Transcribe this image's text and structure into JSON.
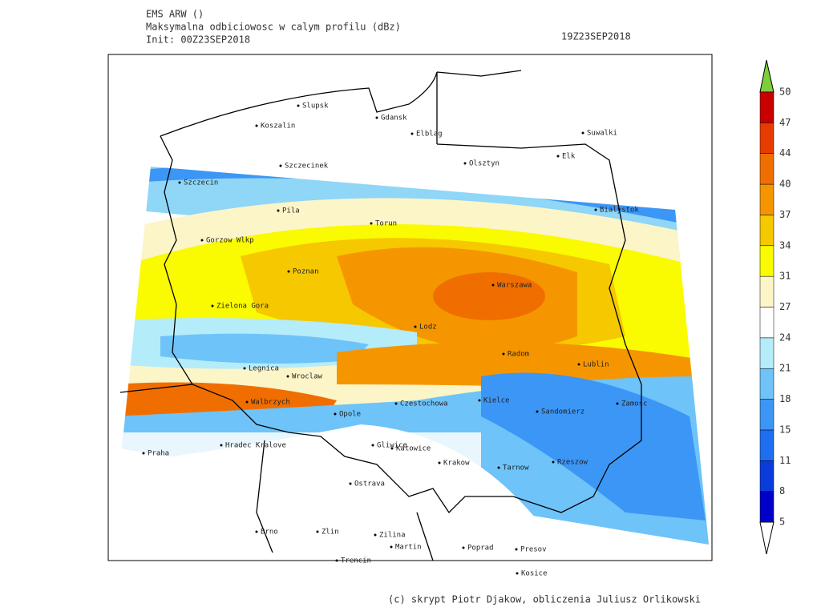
{
  "header": {
    "model": "EMS ARW ()",
    "field": "Maksymalna odbiciowosc w calym profilu (dBz)",
    "init": "Init: 00Z23SEP2018",
    "valid": "19Z23SEP2018"
  },
  "cities": [
    "Slupsk",
    "Gdansk",
    "Koszalin",
    "Elblag",
    "Suwalki",
    "Elk",
    "Szczecinek",
    "Olsztyn",
    "Szczecin",
    "Bialystok",
    "Pila",
    "Torun",
    "Gorzow Wlkp",
    "Poznan",
    "Warszawa",
    "Zielona Gora",
    "Lodz",
    "Radom",
    "Lublin",
    "Legnica",
    "Wroclaw",
    "Walbrzych",
    "Czestochowa",
    "Kielce",
    "Zamosc",
    "Sandomierz",
    "Opole",
    "Hradec Kralove",
    "Gliwice",
    "Katowice",
    "Praha",
    "Krakow",
    "Tarnow",
    "Rzeszow",
    "Ostrava",
    "Brno",
    "Zlin",
    "Zilina",
    "Martin",
    "Poprad",
    "Presov",
    "Trencin",
    "Kosice"
  ],
  "colorbar": {
    "levels": [
      5,
      8,
      11,
      15,
      18,
      21,
      24,
      27,
      31,
      34,
      37,
      40,
      44,
      47,
      50
    ],
    "colors": [
      "#0000c8",
      "#0a3cdc",
      "#1e6ef0",
      "#3c96f5",
      "#6ec3f8",
      "#b4ecfa",
      "#ffffff",
      "#fcf5c8",
      "#fafa00",
      "#f5c800",
      "#f59600",
      "#f06e00",
      "#e63c00",
      "#c80000"
    ]
  },
  "footer": "(c) skrypt Piotr Djakow, obliczenia Juliusz Orlikowski"
}
